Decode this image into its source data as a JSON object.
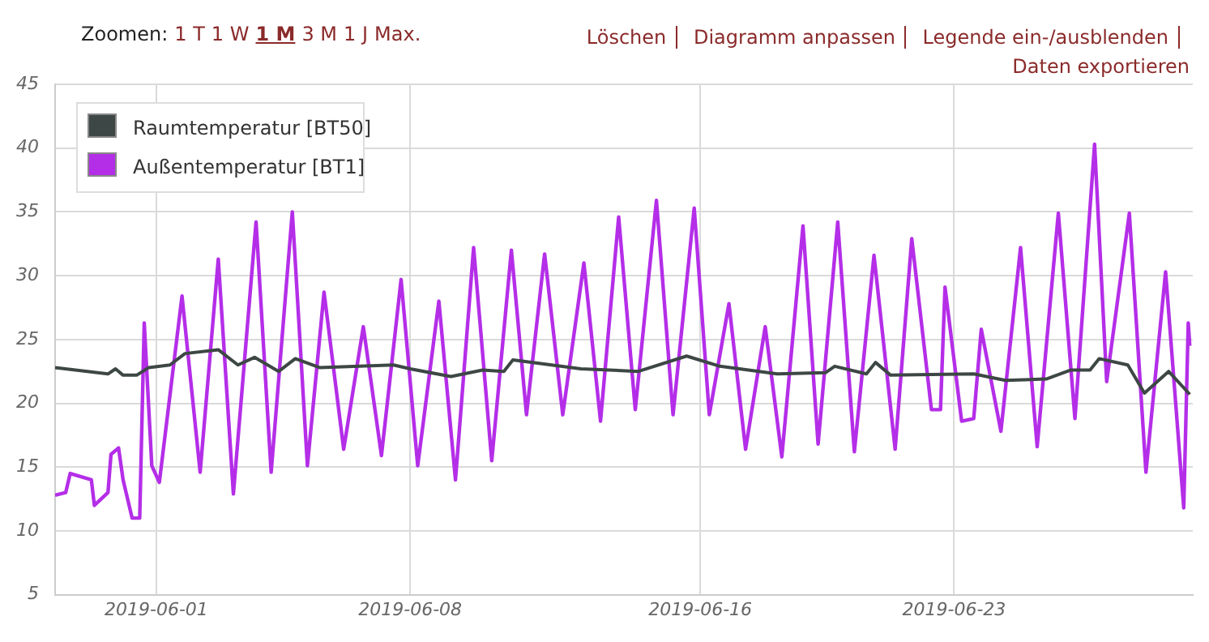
{
  "chart_data": {
    "type": "line",
    "xlim": [
      "2019-05-29T05:00",
      "2019-06-29T14:00"
    ],
    "xticks": [
      "2019-06-01",
      "2019-06-08",
      "2019-06-16",
      "2019-06-23"
    ],
    "ylim": [
      5,
      45
    ],
    "yticks": [
      5,
      10,
      15,
      20,
      25,
      30,
      35,
      40,
      45
    ],
    "grid": true,
    "legend": "top left",
    "marker": "none",
    "line_style": "solid",
    "annotations": [
      "Zoomen:",
      "1 T",
      "1 W",
      "1 M",
      "3 M",
      "1 J",
      "Max.",
      "Löschen",
      "Diagramm anpassen",
      "Legende ein-/ausblenden",
      "Daten exportieren"
    ],
    "series": [
      {
        "name": "Raumtemperatur [BT50]",
        "color": "#3d4745",
        "x": [
          "2019-05-29T05:00",
          "2019-05-30T16:00",
          "2019-05-30T21:00",
          "2019-05-31T02:00",
          "2019-05-31T11:00",
          "2019-05-31T19:00",
          "2019-06-01T09:00",
          "2019-06-01T19:00",
          "2019-06-02T17:00",
          "2019-06-03T06:00",
          "2019-06-03T17:00",
          "2019-06-04T09:00",
          "2019-06-04T20:00",
          "2019-06-05T12:00",
          "2019-06-07T13:00",
          "2019-06-08T00:00",
          "2019-06-09T03:00",
          "2019-06-10T00:00",
          "2019-06-10T14:00",
          "2019-06-10T20:00",
          "2019-06-12T17:00",
          "2019-06-14T07:00",
          "2019-06-15T15:00",
          "2019-06-16T13:00",
          "2019-06-18T03:00",
          "2019-06-19T11:00",
          "2019-06-19T17:00",
          "2019-06-20T14:00",
          "2019-06-20T20:00",
          "2019-06-21T06:00",
          "2019-06-23T13:00",
          "2019-06-24T10:00",
          "2019-06-25T13:00",
          "2019-06-26T05:00",
          "2019-06-26T18:00",
          "2019-06-27T00:00",
          "2019-06-27T19:00",
          "2019-06-28T06:00",
          "2019-06-28T22:00",
          "2019-06-29T12:00"
        ],
        "values": [
          22.8,
          22.3,
          22.7,
          22.2,
          22.2,
          22.8,
          23,
          23.9,
          24.2,
          23,
          23.6,
          22.5,
          23.5,
          22.8,
          23,
          22.7,
          22.1,
          22.6,
          22.5,
          23.4,
          22.7,
          22.5,
          23.7,
          22.9,
          22.3,
          22.4,
          22.9,
          22.3,
          23.2,
          22.2,
          22.3,
          21.8,
          21.9,
          22.6,
          22.6,
          23.5,
          23,
          20.8,
          22.5,
          20.7
        ]
      },
      {
        "name": "Außentemperatur [BT1]",
        "color": "#b42ee8",
        "x": [
          "2019-05-29T05:00",
          "2019-05-29T12:00",
          "2019-05-29T15:00",
          "2019-05-30T05:00",
          "2019-05-30T07:00",
          "2019-05-30T16:00",
          "2019-05-30T18:00",
          "2019-05-30T23:00",
          "2019-05-31T02:00",
          "2019-05-31T08:00",
          "2019-05-31T13:00",
          "2019-05-31T16:00",
          "2019-05-31T21:00",
          "2019-06-01T02:00",
          "2019-06-01T17:00",
          "2019-06-02T05:00",
          "2019-06-02T17:00",
          "2019-06-03T03:00",
          "2019-06-03T18:00",
          "2019-06-04T04:00",
          "2019-06-04T18:00",
          "2019-06-05T04:00",
          "2019-06-05T15:00",
          "2019-06-06T04:00",
          "2019-06-06T17:00",
          "2019-06-07T05:00",
          "2019-06-07T18:00",
          "2019-06-08T05:00",
          "2019-06-08T19:00",
          "2019-06-09T06:00",
          "2019-06-09T18:00",
          "2019-06-10T06:00",
          "2019-06-10T19:00",
          "2019-06-11T05:00",
          "2019-06-11T17:00",
          "2019-06-12T05:00",
          "2019-06-12T19:00",
          "2019-06-13T06:00",
          "2019-06-13T18:00",
          "2019-06-14T05:00",
          "2019-06-14T19:00",
          "2019-06-15T06:00",
          "2019-06-15T20:00",
          "2019-06-16T06:00",
          "2019-06-16T19:00",
          "2019-06-17T06:00",
          "2019-06-17T19:00",
          "2019-06-18T06:00",
          "2019-06-18T20:00",
          "2019-06-19T06:00",
          "2019-06-19T19:00",
          "2019-06-20T06:00",
          "2019-06-20T19:00",
          "2019-06-21T09:00",
          "2019-06-21T20:00",
          "2019-06-22T09:00",
          "2019-06-22T15:00",
          "2019-06-22T18:00",
          "2019-06-23T05:00",
          "2019-06-23T13:00",
          "2019-06-23T18:00",
          "2019-06-24T07:00",
          "2019-06-24T20:00",
          "2019-06-25T07:00",
          "2019-06-25T21:00",
          "2019-06-26T08:00",
          "2019-06-26T21:00",
          "2019-06-27T05:00",
          "2019-06-27T20:00",
          "2019-06-28T07:00",
          "2019-06-28T20:00",
          "2019-06-29T08:00",
          "2019-06-29T11:00",
          "2019-06-29T12:00"
        ],
        "values": [
          12.8,
          13,
          14.5,
          14,
          12,
          13,
          16,
          16.5,
          14,
          11,
          11,
          26.3,
          15.1,
          13.8,
          28.4,
          14.6,
          31.3,
          12.9,
          34.2,
          14.6,
          35,
          15.1,
          28.7,
          16.4,
          26,
          15.9,
          29.7,
          15.1,
          28,
          14,
          32.2,
          15.5,
          32,
          19.1,
          31.7,
          19.1,
          31,
          18.6,
          34.6,
          19.5,
          35.9,
          19.1,
          35.3,
          19.1,
          27.8,
          16.4,
          26,
          15.8,
          33.9,
          16.8,
          34.2,
          16.2,
          31.6,
          16.4,
          32.9,
          19.5,
          19.5,
          29.1,
          18.6,
          18.8,
          25.8,
          17.8,
          32.2,
          16.6,
          34.9,
          18.8,
          40.3,
          21.7,
          34.9,
          14.6,
          30.3,
          11.8,
          26.3,
          24.5
        ]
      }
    ]
  }
}
